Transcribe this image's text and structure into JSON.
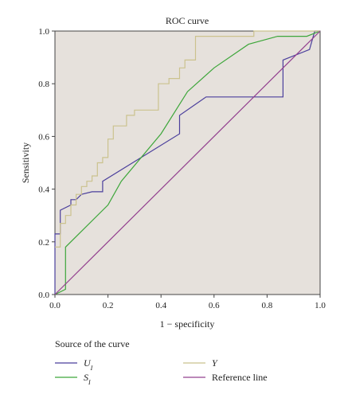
{
  "chart_data": {
    "type": "line",
    "title": "ROC curve",
    "xlabel": "1 − specificity",
    "ylabel": "Sensitivity",
    "xlim": [
      0,
      1
    ],
    "ylim": [
      0,
      1
    ],
    "x_ticks": [
      "0.0",
      "0.2",
      "0.4",
      "0.6",
      "0.8",
      "1.0"
    ],
    "y_ticks": [
      "0.0",
      "0.2",
      "0.4",
      "0.6",
      "0.8",
      "1.0"
    ],
    "grid": false,
    "plot_background": "#e6e1dc",
    "legend": {
      "title": "Source of the curve",
      "placement": "bottom"
    },
    "series": [
      {
        "name": "U",
        "name_sub": "I",
        "color": "#4b3f9c",
        "points": [
          [
            0,
            0
          ],
          [
            0,
            0.23
          ],
          [
            0.02,
            0.23
          ],
          [
            0.02,
            0.32
          ],
          [
            0.06,
            0.34
          ],
          [
            0.06,
            0.36
          ],
          [
            0.08,
            0.36
          ],
          [
            0.1,
            0.38
          ],
          [
            0.14,
            0.39
          ],
          [
            0.18,
            0.39
          ],
          [
            0.18,
            0.43
          ],
          [
            0.47,
            0.61
          ],
          [
            0.47,
            0.68
          ],
          [
            0.57,
            0.75
          ],
          [
            0.86,
            0.75
          ],
          [
            0.86,
            0.89
          ],
          [
            0.96,
            0.93
          ],
          [
            0.98,
            1
          ],
          [
            1,
            1
          ]
        ]
      },
      {
        "name": "S",
        "name_sub": "I",
        "color": "#3da63a",
        "points": [
          [
            0,
            0
          ],
          [
            0.04,
            0.02
          ],
          [
            0.04,
            0.18
          ],
          [
            0.2,
            0.34
          ],
          [
            0.25,
            0.43
          ],
          [
            0.4,
            0.61
          ],
          [
            0.5,
            0.77
          ],
          [
            0.6,
            0.86
          ],
          [
            0.73,
            0.95
          ],
          [
            0.84,
            0.98
          ],
          [
            0.95,
            0.98
          ],
          [
            1,
            1
          ]
        ]
      },
      {
        "name": "Y",
        "name_sub": "",
        "color": "#cbc28e",
        "points": [
          [
            0,
            0.18
          ],
          [
            0.02,
            0.18
          ],
          [
            0.02,
            0.27
          ],
          [
            0.04,
            0.27
          ],
          [
            0.04,
            0.3
          ],
          [
            0.06,
            0.3
          ],
          [
            0.06,
            0.34
          ],
          [
            0.08,
            0.34
          ],
          [
            0.08,
            0.38
          ],
          [
            0.1,
            0.38
          ],
          [
            0.1,
            0.41
          ],
          [
            0.12,
            0.41
          ],
          [
            0.12,
            0.43
          ],
          [
            0.14,
            0.43
          ],
          [
            0.14,
            0.45
          ],
          [
            0.16,
            0.45
          ],
          [
            0.16,
            0.5
          ],
          [
            0.18,
            0.5
          ],
          [
            0.18,
            0.52
          ],
          [
            0.2,
            0.52
          ],
          [
            0.2,
            0.59
          ],
          [
            0.22,
            0.59
          ],
          [
            0.22,
            0.64
          ],
          [
            0.27,
            0.64
          ],
          [
            0.27,
            0.68
          ],
          [
            0.3,
            0.68
          ],
          [
            0.3,
            0.7
          ],
          [
            0.39,
            0.7
          ],
          [
            0.39,
            0.8
          ],
          [
            0.43,
            0.8
          ],
          [
            0.43,
            0.82
          ],
          [
            0.47,
            0.82
          ],
          [
            0.47,
            0.86
          ],
          [
            0.49,
            0.86
          ],
          [
            0.49,
            0.89
          ],
          [
            0.53,
            0.89
          ],
          [
            0.53,
            0.98
          ],
          [
            0.75,
            0.98
          ],
          [
            0.75,
            1
          ],
          [
            1,
            1
          ]
        ]
      },
      {
        "name": "Reference line",
        "name_sub": "",
        "color": "#93408f",
        "points": [
          [
            0,
            0
          ],
          [
            1,
            1
          ]
        ]
      }
    ]
  }
}
